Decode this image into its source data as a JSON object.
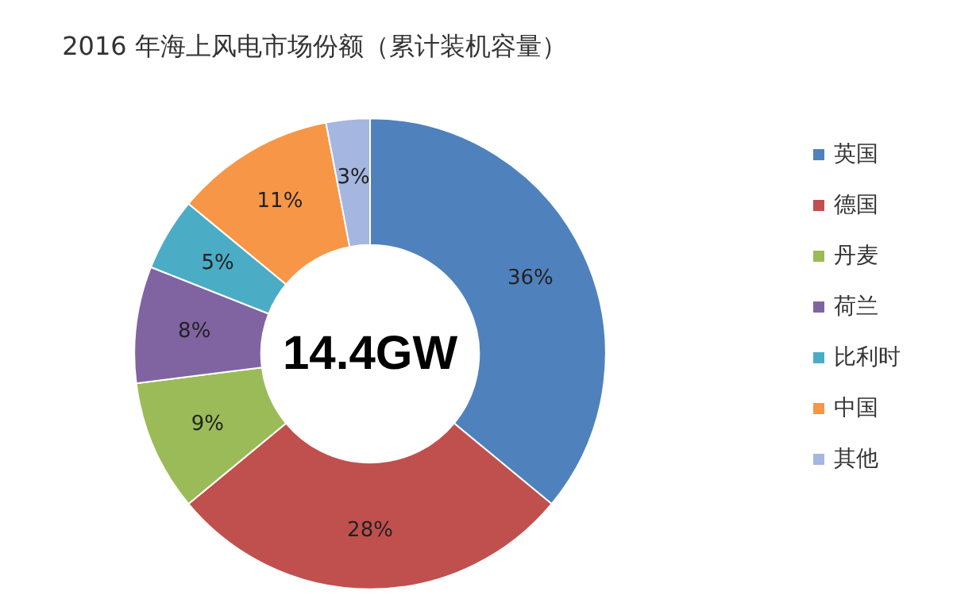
{
  "chart_data": {
    "type": "donut",
    "title": "2016 年海上风电市场份额（累计装机容量）",
    "categories": [
      "英国",
      "德国",
      "丹麦",
      "荷兰",
      "比利时",
      "中国",
      "其他"
    ],
    "values": [
      36,
      28,
      9,
      8,
      5,
      11,
      3
    ],
    "colors": [
      "#4f81bd",
      "#c0504d",
      "#9bbb59",
      "#8064a2",
      "#4bacc6",
      "#f79646",
      "#a5b6e0"
    ],
    "annotations": [
      "14.4GW"
    ],
    "value_labels": [
      "36%",
      "28%",
      "9%",
      "8%",
      "5%",
      "11%",
      "3%"
    ],
    "legend": "right"
  }
}
